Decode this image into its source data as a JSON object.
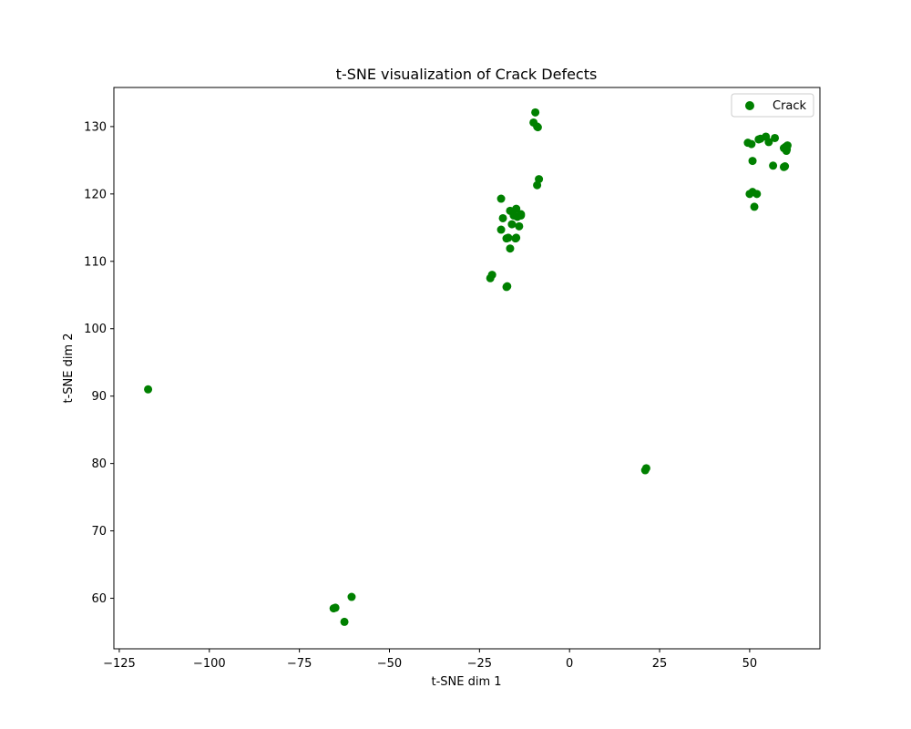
{
  "chart_data": {
    "type": "scatter",
    "title": "t-SNE visualization of Crack Defects",
    "xlabel": "t-SNE dim 1",
    "ylabel": "t-SNE dim 2",
    "xlim": [
      -126.5,
      69.5
    ],
    "ylim": [
      52.5,
      135.8
    ],
    "xticks": [
      -125,
      -100,
      -75,
      -50,
      -25,
      0,
      25,
      50
    ],
    "yticks": [
      60,
      70,
      80,
      90,
      100,
      110,
      120,
      130
    ],
    "xtick_labels": [
      "−125",
      "−100",
      "−75",
      "−50",
      "−25",
      "0",
      "25",
      "50"
    ],
    "ytick_labels": [
      "60",
      "70",
      "80",
      "90",
      "100",
      "110",
      "120",
      "130"
    ],
    "grid": false,
    "legend_position": "top-right",
    "series": [
      {
        "name": "Crack",
        "color": "#008000",
        "points": [
          [
            -117,
            91.0
          ],
          [
            -65.5,
            58.5
          ],
          [
            -65,
            58.6
          ],
          [
            -62.5,
            56.5
          ],
          [
            -60.5,
            60.2
          ],
          [
            21,
            79.0
          ],
          [
            21.3,
            79.3
          ],
          [
            -22,
            107.5
          ],
          [
            -21.5,
            108.0
          ],
          [
            -17.5,
            106.2
          ],
          [
            -17.3,
            106.3
          ],
          [
            -19,
            114.7
          ],
          [
            -18.5,
            116.4
          ],
          [
            -17.5,
            113.4
          ],
          [
            -17,
            113.5
          ],
          [
            -16.5,
            111.9
          ],
          [
            -16.5,
            117.5
          ],
          [
            -16,
            115.5
          ],
          [
            -15.5,
            116.8
          ],
          [
            -15,
            113.4
          ],
          [
            -14.8,
            113.5
          ],
          [
            -14.8,
            117.8
          ],
          [
            -14.5,
            116.6
          ],
          [
            -14,
            115.2
          ],
          [
            -13.5,
            117.0
          ],
          [
            -13.5,
            116.8
          ],
          [
            -19,
            119.3
          ],
          [
            -9,
            121.3
          ],
          [
            -8.5,
            122.2
          ],
          [
            -10,
            130.6
          ],
          [
            -9.5,
            132.1
          ],
          [
            -9,
            130.0
          ],
          [
            -8.8,
            129.9
          ],
          [
            49.5,
            127.6
          ],
          [
            50.5,
            127.4
          ],
          [
            50.8,
            124.9
          ],
          [
            50,
            120.0
          ],
          [
            50.8,
            120.3
          ],
          [
            51.3,
            118.1
          ],
          [
            52,
            120.0
          ],
          [
            52.5,
            128.1
          ],
          [
            53,
            128.2
          ],
          [
            54.5,
            128.5
          ],
          [
            55.3,
            127.7
          ],
          [
            56.5,
            124.2
          ],
          [
            57,
            128.3
          ],
          [
            59.5,
            124.0
          ],
          [
            59.8,
            124.1
          ],
          [
            59.5,
            126.8
          ],
          [
            60,
            127.0
          ],
          [
            60.2,
            126.4
          ],
          [
            60.5,
            127.2
          ],
          [
            60.3,
            126.6
          ]
        ]
      }
    ]
  }
}
